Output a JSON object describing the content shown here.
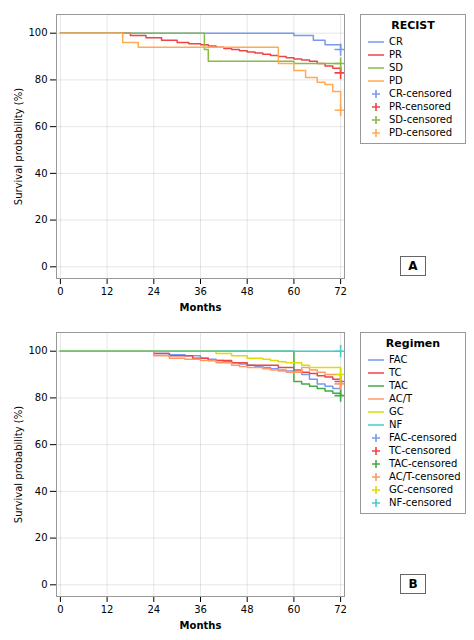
{
  "chart_data": [
    {
      "type": "step",
      "title": "RECIST",
      "ylabel": "Survival probability (%)",
      "xlabel": "Months",
      "annotation": "A",
      "xlim": [
        -1,
        73
      ],
      "ylim": [
        -5,
        108
      ],
      "xticks": [
        0,
        12,
        24,
        36,
        48,
        60,
        72
      ],
      "yticks": [
        0,
        20,
        40,
        60,
        80,
        100
      ],
      "grid": true,
      "legend": "right",
      "series": [
        {
          "name": "CR",
          "color": "#7799EE",
          "marker": "plus",
          "censor_label": "CR-censored",
          "x": [
            0,
            58,
            60,
            65,
            68,
            72
          ],
          "values": [
            100,
            100,
            99,
            97,
            95,
            93
          ],
          "censor_x": [
            72
          ],
          "censor_y": [
            93
          ]
        },
        {
          "name": "PR",
          "color": "#EE4444",
          "marker": "plus",
          "censor_label": "PR-censored",
          "x": [
            0,
            18,
            22,
            26,
            30,
            33,
            36,
            38,
            40,
            42,
            44,
            46,
            48,
            50,
            52,
            54,
            56,
            58,
            60,
            62,
            64,
            66,
            68,
            70,
            72
          ],
          "values": [
            100,
            99,
            98,
            97,
            96,
            95.5,
            95,
            94.5,
            94,
            93.5,
            93,
            92.5,
            92,
            91.5,
            91,
            90.5,
            90,
            89.5,
            89,
            88.5,
            88,
            87,
            86,
            85,
            83
          ],
          "censor_x": [
            72
          ],
          "censor_y": [
            83
          ]
        },
        {
          "name": "SD",
          "color": "#88BB44",
          "marker": "plus",
          "censor_label": "SD-censored",
          "x": [
            0,
            34,
            37,
            38,
            60,
            72
          ],
          "values": [
            100,
            100,
            93,
            88,
            87,
            87
          ],
          "censor_x": [
            72
          ],
          "censor_y": [
            87
          ]
        },
        {
          "name": "PD",
          "color": "#FFAA55",
          "marker": "plus",
          "censor_label": "PD-censored",
          "x": [
            0,
            16,
            20,
            36,
            56,
            60,
            63,
            66,
            68,
            70,
            72
          ],
          "values": [
            100,
            96,
            94,
            94,
            87,
            84,
            81,
            79,
            78,
            75,
            67
          ],
          "censor_x": [
            72
          ],
          "censor_y": [
            67
          ]
        }
      ]
    },
    {
      "type": "step",
      "title": "Regimen",
      "ylabel": "Survival probability (%)",
      "xlabel": "Months",
      "annotation": "B",
      "xlim": [
        -1,
        73
      ],
      "ylim": [
        -5,
        108
      ],
      "xticks": [
        0,
        12,
        24,
        36,
        48,
        60,
        72
      ],
      "yticks": [
        0,
        20,
        40,
        60,
        80,
        100
      ],
      "grid": true,
      "legend": "right",
      "series": [
        {
          "name": "FAC",
          "color": "#7799EE",
          "marker": "plus",
          "censor_label": "FAC-censored",
          "x": [
            0,
            12,
            24,
            28,
            32,
            36,
            38,
            40,
            42,
            44,
            46,
            48,
            50,
            52,
            54,
            56,
            58,
            60,
            62,
            64,
            66,
            68,
            70,
            72
          ],
          "values": [
            100,
            100,
            99,
            98.5,
            98,
            97,
            96.5,
            96,
            95.5,
            95,
            94.5,
            94,
            93.5,
            93,
            92.5,
            92,
            91.5,
            91,
            90,
            88,
            86,
            85,
            84,
            82
          ],
          "censor_x": [],
          "censor_y": []
        },
        {
          "name": "TC",
          "color": "#EE4444",
          "marker": "plus",
          "censor_label": "TC-censored",
          "x": [
            0,
            12,
            24,
            28,
            34,
            38,
            44,
            46,
            48,
            52,
            56,
            58,
            60,
            62,
            64,
            66,
            68,
            70,
            72
          ],
          "values": [
            100,
            100,
            99,
            98,
            97,
            96,
            95,
            95,
            94,
            94,
            93,
            93,
            92,
            91,
            90.5,
            89.5,
            89,
            88,
            87
          ],
          "censor_x": [
            72
          ],
          "censor_y": [
            87
          ]
        },
        {
          "name": "TAC",
          "color": "#44AA44",
          "marker": "plus",
          "censor_label": "TAC-censored",
          "x": [
            0,
            12,
            58,
            60,
            62,
            64,
            66,
            68,
            70,
            72
          ],
          "values": [
            100,
            100,
            100,
            87,
            86,
            85,
            84,
            83,
            82,
            81
          ],
          "censor_x": [
            72
          ],
          "censor_y": [
            81
          ]
        },
        {
          "name": "AC/T",
          "color": "#FF9966",
          "marker": "plus",
          "censor_label": "AC/T-censored",
          "x": [
            0,
            12,
            24,
            28,
            32,
            36,
            40,
            44,
            46,
            48,
            50,
            52,
            54,
            56,
            58,
            60,
            62,
            64,
            66,
            68,
            70,
            72
          ],
          "values": [
            100,
            100,
            98,
            97,
            96.5,
            96,
            95,
            94,
            93.5,
            93,
            93,
            92.5,
            92,
            91.5,
            91,
            91,
            93,
            92,
            91,
            90,
            90,
            86
          ],
          "censor_x": [
            72
          ],
          "censor_y": [
            86
          ]
        },
        {
          "name": "GC",
          "color": "#DDDD00",
          "marker": "plus",
          "censor_label": "GC-censored",
          "x": [
            0,
            12,
            40,
            44,
            48,
            52,
            54,
            56,
            58,
            60,
            62,
            64,
            66,
            68,
            70,
            72
          ],
          "values": [
            100,
            100,
            99,
            98,
            97,
            96.5,
            96,
            95.5,
            95,
            95,
            94,
            93,
            93,
            93,
            93,
            90
          ],
          "censor_x": [
            72
          ],
          "censor_y": [
            90
          ]
        },
        {
          "name": "NF",
          "color": "#44CCCC",
          "marker": "plus",
          "censor_label": "NF-censored",
          "x": [
            0,
            72
          ],
          "values": [
            100,
            100
          ],
          "censor_x": [
            72
          ],
          "censor_y": [
            100
          ]
        }
      ]
    }
  ]
}
